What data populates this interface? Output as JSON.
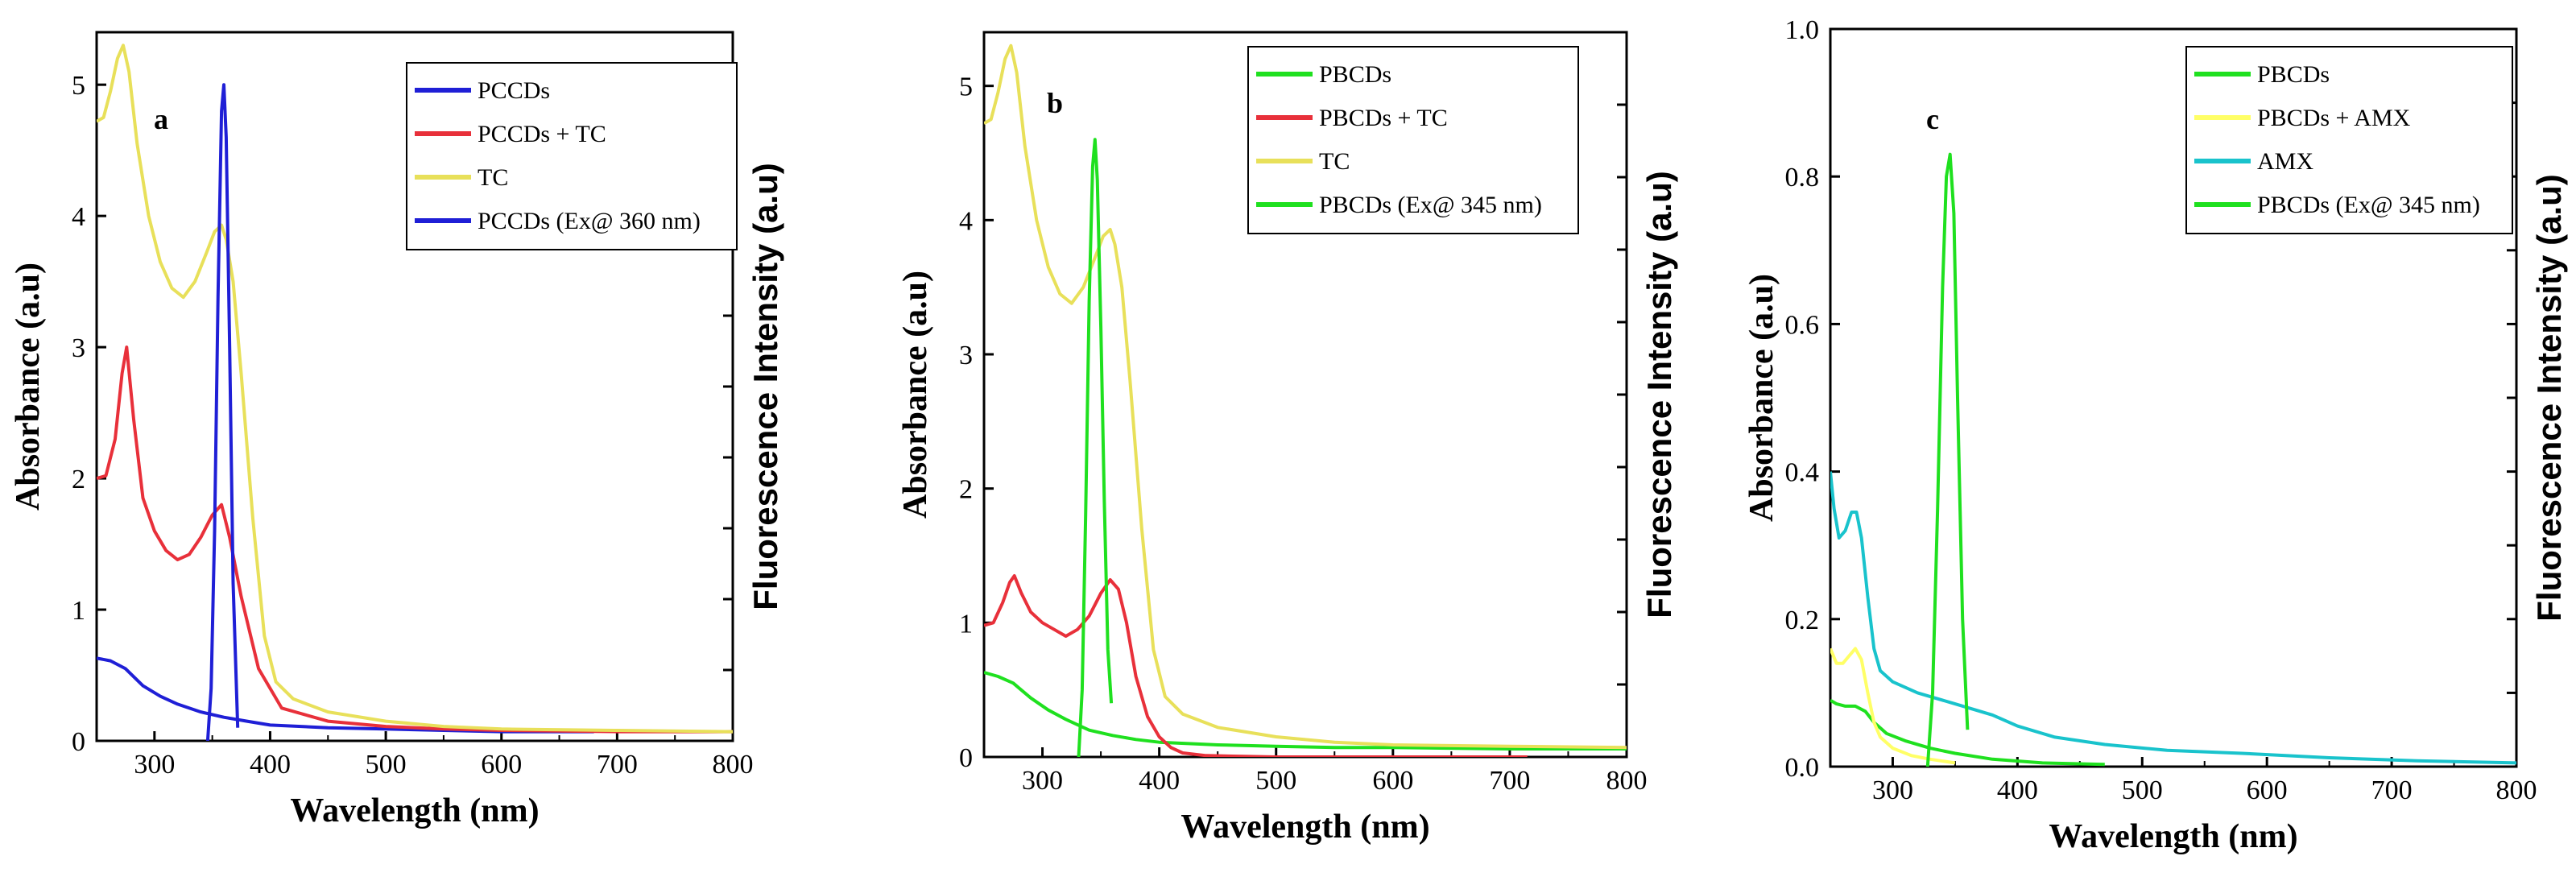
{
  "chart_data": [
    {
      "type": "line",
      "panel_label": "a",
      "xlabel": "Wavelength (nm)",
      "ylabel": "Absorbance (a.u)",
      "y2label": "Fluorescence Intensity (a.u)",
      "xlim": [
        250,
        800
      ],
      "ylim": [
        0,
        5.4
      ],
      "xticks": [
        300,
        400,
        500,
        600,
        700,
        800
      ],
      "yticks": [
        0,
        1,
        2,
        3,
        4,
        5
      ],
      "legend_position": "top-right",
      "series": [
        {
          "name": "PCCDs",
          "color": "#1f1fd6",
          "x": [
            250,
            262,
            275,
            290,
            305,
            320,
            340,
            360,
            380,
            400,
            450,
            500,
            550,
            600,
            650,
            680
          ],
          "y": [
            0.63,
            0.61,
            0.55,
            0.42,
            0.34,
            0.28,
            0.22,
            0.18,
            0.15,
            0.12,
            0.1,
            0.09,
            0.08,
            0.07,
            0.07,
            0.07
          ]
        },
        {
          "name": "PCCDs + TC",
          "color": "#e8303a",
          "x": [
            250,
            258,
            266,
            272,
            276,
            282,
            290,
            300,
            310,
            320,
            330,
            340,
            350,
            358,
            365,
            375,
            390,
            410,
            450,
            500,
            550,
            600,
            700,
            800
          ],
          "y": [
            2.0,
            2.02,
            2.3,
            2.8,
            3.0,
            2.45,
            1.85,
            1.6,
            1.45,
            1.38,
            1.42,
            1.55,
            1.72,
            1.8,
            1.55,
            1.1,
            0.55,
            0.25,
            0.15,
            0.11,
            0.09,
            0.08,
            0.07,
            0.07
          ]
        },
        {
          "name": "TC",
          "color": "#e8e05a",
          "x": [
            250,
            256,
            262,
            268,
            273,
            278,
            285,
            295,
            305,
            315,
            325,
            335,
            345,
            352,
            358,
            362,
            368,
            375,
            385,
            395,
            405,
            420,
            450,
            500,
            550,
            600,
            700,
            800
          ],
          "y": [
            4.72,
            4.75,
            4.95,
            5.2,
            5.3,
            5.1,
            4.55,
            4.0,
            3.65,
            3.45,
            3.38,
            3.5,
            3.72,
            3.88,
            3.93,
            3.82,
            3.5,
            2.8,
            1.7,
            0.8,
            0.45,
            0.32,
            0.22,
            0.15,
            0.11,
            0.09,
            0.08,
            0.07
          ]
        },
        {
          "name": "PCCDs (Ex@ 360 nm)",
          "color": "#1f1fd6",
          "x": [
            346,
            349,
            352,
            355,
            358,
            360,
            362,
            365,
            368,
            372
          ],
          "y": [
            0.0,
            0.4,
            1.6,
            3.4,
            4.8,
            5.0,
            4.6,
            3.0,
            1.2,
            0.1
          ]
        }
      ]
    },
    {
      "type": "line",
      "panel_label": "b",
      "xlabel": "Wavelength (nm)",
      "ylabel": "Absorbance (a.u)",
      "y2label": "Fluorescence Intensity (a.u)",
      "xlim": [
        250,
        800
      ],
      "ylim": [
        0,
        5.4
      ],
      "xticks": [
        300,
        400,
        500,
        600,
        700,
        800
      ],
      "yticks": [
        0,
        1,
        2,
        3,
        4,
        5
      ],
      "legend_position": "top-right",
      "series": [
        {
          "name": "PBCDs",
          "color": "#1fe01f",
          "x": [
            250,
            262,
            275,
            290,
            305,
            320,
            340,
            360,
            380,
            400,
            450,
            500,
            550,
            600,
            700,
            800
          ],
          "y": [
            0.63,
            0.6,
            0.55,
            0.44,
            0.35,
            0.28,
            0.2,
            0.16,
            0.13,
            0.11,
            0.09,
            0.08,
            0.07,
            0.07,
            0.06,
            0.06
          ]
        },
        {
          "name": "PBCDs + TC",
          "color": "#e8303a",
          "x": [
            250,
            258,
            266,
            272,
            276,
            282,
            290,
            300,
            310,
            320,
            330,
            340,
            350,
            358,
            365,
            372,
            380,
            390,
            400,
            410,
            420,
            440,
            500,
            600,
            700,
            715
          ],
          "y": [
            0.98,
            1.0,
            1.15,
            1.3,
            1.35,
            1.22,
            1.08,
            1.0,
            0.95,
            0.9,
            0.95,
            1.05,
            1.22,
            1.32,
            1.25,
            1.0,
            0.6,
            0.3,
            0.15,
            0.07,
            0.03,
            0.01,
            0.0,
            0.0,
            0.0,
            0.0
          ]
        },
        {
          "name": "TC",
          "color": "#e8e05a",
          "x": [
            250,
            256,
            262,
            268,
            273,
            278,
            285,
            295,
            305,
            315,
            325,
            335,
            345,
            352,
            358,
            362,
            368,
            375,
            385,
            395,
            405,
            420,
            450,
            500,
            550,
            600,
            700,
            800
          ],
          "y": [
            4.72,
            4.75,
            4.95,
            5.2,
            5.3,
            5.1,
            4.55,
            4.0,
            3.65,
            3.45,
            3.38,
            3.5,
            3.72,
            3.88,
            3.93,
            3.82,
            3.5,
            2.8,
            1.7,
            0.8,
            0.45,
            0.32,
            0.22,
            0.15,
            0.11,
            0.09,
            0.08,
            0.07
          ]
        },
        {
          "name": "PBCDs (Ex@ 345 nm)",
          "color": "#1fe01f",
          "x": [
            331,
            334,
            337,
            340,
            343,
            345,
            347,
            350,
            353,
            356,
            359
          ],
          "y": [
            0.0,
            0.5,
            1.8,
            3.4,
            4.4,
            4.6,
            4.3,
            3.2,
            1.9,
            0.8,
            0.4
          ]
        }
      ]
    },
    {
      "type": "line",
      "panel_label": "c",
      "xlabel": "Wavelength (nm)",
      "ylabel": "Absorbance (a.u)",
      "y2label": "Fluorescence Intensity (a.u)",
      "xlim": [
        250,
        800
      ],
      "ylim": [
        0,
        1.0
      ],
      "xticks": [
        300,
        400,
        500,
        600,
        700,
        800
      ],
      "yticks": [
        0.0,
        0.2,
        0.4,
        0.6,
        0.8,
        1.0
      ],
      "ytick_labels": [
        "0.0",
        "0.2",
        "0.4",
        "0.6",
        "0.8",
        "1.0"
      ],
      "legend_position": "top-right",
      "series": [
        {
          "name": "PBCDs",
          "color": "#1fe01f",
          "x": [
            250,
            255,
            262,
            270,
            278,
            285,
            295,
            310,
            330,
            350,
            380,
            420,
            470
          ],
          "y": [
            0.09,
            0.085,
            0.082,
            0.082,
            0.075,
            0.06,
            0.045,
            0.035,
            0.025,
            0.018,
            0.01,
            0.005,
            0.003
          ]
        },
        {
          "name": "PBCDs + AMX",
          "color": "#ffff66",
          "x": [
            250,
            255,
            260,
            265,
            270,
            275,
            280,
            285,
            290,
            300,
            315,
            330,
            350
          ],
          "y": [
            0.16,
            0.14,
            0.14,
            0.15,
            0.16,
            0.145,
            0.1,
            0.06,
            0.04,
            0.025,
            0.015,
            0.01,
            0.005
          ]
        },
        {
          "name": "AMX",
          "color": "#19c3cc",
          "x": [
            250,
            253,
            257,
            262,
            267,
            271,
            275,
            280,
            285,
            290,
            300,
            320,
            350,
            380,
            400,
            430,
            470,
            520,
            580,
            650,
            720,
            800
          ],
          "y": [
            0.4,
            0.35,
            0.31,
            0.32,
            0.345,
            0.345,
            0.31,
            0.23,
            0.16,
            0.13,
            0.115,
            0.1,
            0.085,
            0.07,
            0.055,
            0.04,
            0.03,
            0.022,
            0.018,
            0.012,
            0.008,
            0.005
          ]
        },
        {
          "name": "PBCDs (Ex@ 345 nm)",
          "color": "#1fe01f",
          "x": [
            328,
            332,
            336,
            340,
            343,
            346,
            349,
            352,
            356,
            360
          ],
          "y": [
            0.0,
            0.1,
            0.35,
            0.65,
            0.8,
            0.83,
            0.75,
            0.5,
            0.2,
            0.05
          ]
        }
      ]
    }
  ]
}
